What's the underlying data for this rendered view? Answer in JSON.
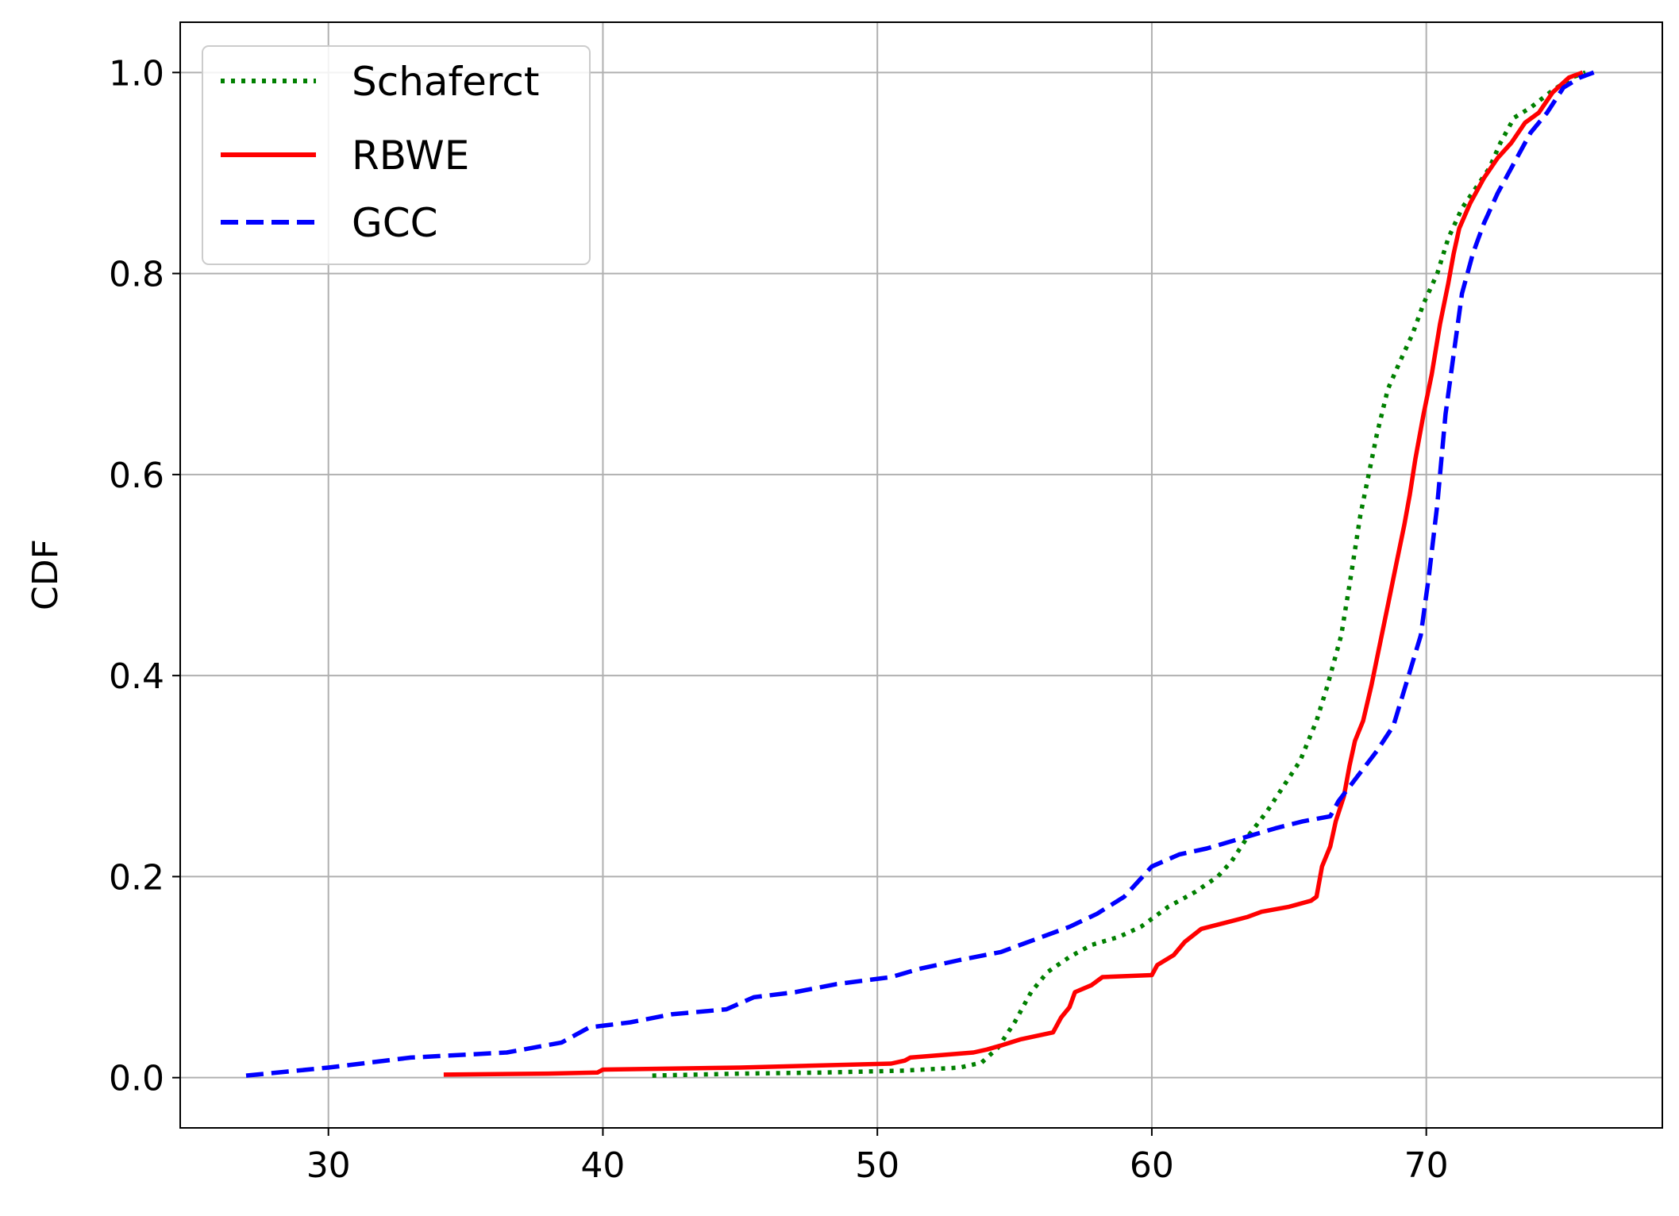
{
  "chart_data": {
    "type": "line",
    "title": "",
    "xlabel": "",
    "ylabel": "CDF",
    "xlim": [
      24.6,
      78.6
    ],
    "ylim": [
      -0.05,
      1.05
    ],
    "x_ticks": [
      30,
      40,
      50,
      60,
      70
    ],
    "y_ticks": [
      0.0,
      0.2,
      0.4,
      0.6,
      0.8,
      1.0
    ],
    "x_tick_labels": [
      "30",
      "40",
      "50",
      "60",
      "70"
    ],
    "y_tick_labels": [
      "0.0",
      "0.2",
      "0.4",
      "0.6",
      "0.8",
      "1.0"
    ],
    "grid": true,
    "legend_position": "upper-left",
    "series": [
      {
        "name": "Schaferct",
        "color": "#008000",
        "style": "dotted",
        "points": [
          [
            41.8,
            0.002
          ],
          [
            45.0,
            0.004
          ],
          [
            48.0,
            0.005
          ],
          [
            51.0,
            0.007
          ],
          [
            53.0,
            0.01
          ],
          [
            53.8,
            0.015
          ],
          [
            54.4,
            0.03
          ],
          [
            55.0,
            0.055
          ],
          [
            55.6,
            0.085
          ],
          [
            56.2,
            0.105
          ],
          [
            57.0,
            0.12
          ],
          [
            57.8,
            0.132
          ],
          [
            58.8,
            0.14
          ],
          [
            59.6,
            0.15
          ],
          [
            60.6,
            0.17
          ],
          [
            61.6,
            0.185
          ],
          [
            62.4,
            0.2
          ],
          [
            62.9,
            0.215
          ],
          [
            63.5,
            0.24
          ],
          [
            64.2,
            0.265
          ],
          [
            64.8,
            0.29
          ],
          [
            65.4,
            0.315
          ],
          [
            66.0,
            0.355
          ],
          [
            66.4,
            0.39
          ],
          [
            66.9,
            0.44
          ],
          [
            67.2,
            0.49
          ],
          [
            67.6,
            0.56
          ],
          [
            67.9,
            0.6
          ],
          [
            68.2,
            0.64
          ],
          [
            68.6,
            0.685
          ],
          [
            69.0,
            0.71
          ],
          [
            69.5,
            0.74
          ],
          [
            69.9,
            0.77
          ],
          [
            70.4,
            0.8
          ],
          [
            70.8,
            0.835
          ],
          [
            71.3,
            0.865
          ],
          [
            71.8,
            0.885
          ],
          [
            72.3,
            0.905
          ],
          [
            72.7,
            0.93
          ],
          [
            73.2,
            0.955
          ],
          [
            73.8,
            0.965
          ],
          [
            74.5,
            0.98
          ],
          [
            75.3,
            0.995
          ],
          [
            75.8,
            1.0
          ]
        ]
      },
      {
        "name": "RBWE",
        "color": "#ff0000",
        "style": "solid",
        "points": [
          [
            34.2,
            0.003
          ],
          [
            38.0,
            0.004
          ],
          [
            39.8,
            0.005
          ],
          [
            40.0,
            0.008
          ],
          [
            45.0,
            0.01
          ],
          [
            50.5,
            0.014
          ],
          [
            51.0,
            0.017
          ],
          [
            51.2,
            0.02
          ],
          [
            53.5,
            0.025
          ],
          [
            54.0,
            0.028
          ],
          [
            54.5,
            0.032
          ],
          [
            55.2,
            0.038
          ],
          [
            56.4,
            0.045
          ],
          [
            56.7,
            0.06
          ],
          [
            57.0,
            0.07
          ],
          [
            57.2,
            0.085
          ],
          [
            57.8,
            0.092
          ],
          [
            58.2,
            0.1
          ],
          [
            60.0,
            0.102
          ],
          [
            60.2,
            0.112
          ],
          [
            60.8,
            0.122
          ],
          [
            61.2,
            0.135
          ],
          [
            61.8,
            0.148
          ],
          [
            62.8,
            0.155
          ],
          [
            63.5,
            0.16
          ],
          [
            64.0,
            0.165
          ],
          [
            65.0,
            0.17
          ],
          [
            65.8,
            0.176
          ],
          [
            66.0,
            0.18
          ],
          [
            66.2,
            0.21
          ],
          [
            66.5,
            0.23
          ],
          [
            66.7,
            0.255
          ],
          [
            67.0,
            0.28
          ],
          [
            67.2,
            0.31
          ],
          [
            67.4,
            0.335
          ],
          [
            67.7,
            0.355
          ],
          [
            68.0,
            0.39
          ],
          [
            68.3,
            0.43
          ],
          [
            68.6,
            0.47
          ],
          [
            68.9,
            0.51
          ],
          [
            69.2,
            0.55
          ],
          [
            69.4,
            0.58
          ],
          [
            69.6,
            0.615
          ],
          [
            69.9,
            0.66
          ],
          [
            70.2,
            0.7
          ],
          [
            70.5,
            0.75
          ],
          [
            70.8,
            0.79
          ],
          [
            71.0,
            0.82
          ],
          [
            71.2,
            0.845
          ],
          [
            71.6,
            0.87
          ],
          [
            72.1,
            0.895
          ],
          [
            72.6,
            0.915
          ],
          [
            73.1,
            0.93
          ],
          [
            73.6,
            0.95
          ],
          [
            74.1,
            0.96
          ],
          [
            74.6,
            0.98
          ],
          [
            75.2,
            0.995
          ],
          [
            75.7,
            1.0
          ]
        ]
      },
      {
        "name": "GCC",
        "color": "#0000ff",
        "style": "dashed",
        "points": [
          [
            27.0,
            0.002
          ],
          [
            30.0,
            0.01
          ],
          [
            33.0,
            0.02
          ],
          [
            36.5,
            0.025
          ],
          [
            38.5,
            0.035
          ],
          [
            39.5,
            0.05
          ],
          [
            41.0,
            0.055
          ],
          [
            42.5,
            0.063
          ],
          [
            44.5,
            0.068
          ],
          [
            45.5,
            0.08
          ],
          [
            47.0,
            0.085
          ],
          [
            48.5,
            0.093
          ],
          [
            50.5,
            0.1
          ],
          [
            51.5,
            0.108
          ],
          [
            53.0,
            0.117
          ],
          [
            54.5,
            0.125
          ],
          [
            56.0,
            0.14
          ],
          [
            57.0,
            0.15
          ],
          [
            58.0,
            0.163
          ],
          [
            59.0,
            0.18
          ],
          [
            60.0,
            0.21
          ],
          [
            61.0,
            0.222
          ],
          [
            62.0,
            0.228
          ],
          [
            63.5,
            0.24
          ],
          [
            64.5,
            0.248
          ],
          [
            65.5,
            0.255
          ],
          [
            66.5,
            0.26
          ],
          [
            66.8,
            0.275
          ],
          [
            67.5,
            0.3
          ],
          [
            68.2,
            0.325
          ],
          [
            68.8,
            0.35
          ],
          [
            69.3,
            0.395
          ],
          [
            69.8,
            0.44
          ],
          [
            70.1,
            0.5
          ],
          [
            70.4,
            0.57
          ],
          [
            70.7,
            0.66
          ],
          [
            71.0,
            0.72
          ],
          [
            71.3,
            0.78
          ],
          [
            71.7,
            0.82
          ],
          [
            72.1,
            0.85
          ],
          [
            72.6,
            0.88
          ],
          [
            73.2,
            0.91
          ],
          [
            73.8,
            0.94
          ],
          [
            74.4,
            0.96
          ],
          [
            75.0,
            0.985
          ],
          [
            75.6,
            0.995
          ],
          [
            76.1,
            1.0
          ]
        ]
      }
    ]
  }
}
